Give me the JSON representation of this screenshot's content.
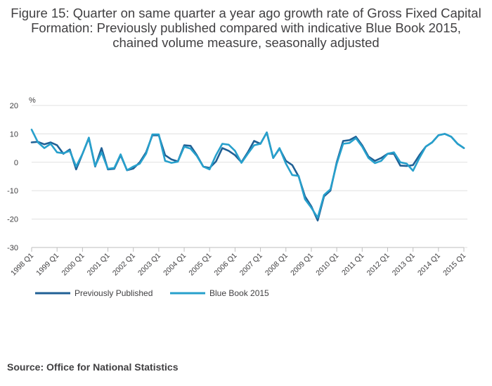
{
  "title": "Figure 15: Quarter on same quarter a year ago growth rate of Gross Fixed Capital Formation: Previously published compared with indicative Blue Book 2015, chained volume measure, seasonally adjusted",
  "source": "Source: Office for National Statistics",
  "colors": {
    "previous": "#206095",
    "bluebook": "#27a0cc",
    "grid": "#e0e0e0",
    "text": "#414042",
    "axis": "#bebebe"
  },
  "chart_data": {
    "type": "line",
    "ylabel": "%",
    "ylim": [
      -30,
      20
    ],
    "yticks": [
      20,
      10,
      0,
      -10,
      -20,
      -30
    ],
    "grid": true,
    "legend_position": "bottom-left",
    "x": [
      "1998 Q1",
      "1998 Q2",
      "1998 Q3",
      "1998 Q4",
      "1999 Q1",
      "1999 Q2",
      "1999 Q3",
      "1999 Q4",
      "2000 Q1",
      "2000 Q2",
      "2000 Q3",
      "2000 Q4",
      "2001 Q1",
      "2001 Q2",
      "2001 Q3",
      "2001 Q4",
      "2002 Q1",
      "2002 Q2",
      "2002 Q3",
      "2002 Q4",
      "2003 Q1",
      "2003 Q2",
      "2003 Q3",
      "2003 Q4",
      "2004 Q1",
      "2004 Q2",
      "2004 Q3",
      "2004 Q4",
      "2005 Q1",
      "2005 Q2",
      "2005 Q3",
      "2005 Q4",
      "2006 Q1",
      "2006 Q2",
      "2006 Q3",
      "2006 Q4",
      "2007 Q1",
      "2007 Q2",
      "2007 Q3",
      "2007 Q4",
      "2008 Q1",
      "2008 Q2",
      "2008 Q3",
      "2008 Q4",
      "2009 Q1",
      "2009 Q2",
      "2009 Q3",
      "2009 Q4",
      "2010 Q1",
      "2010 Q2",
      "2010 Q3",
      "2010 Q4",
      "2011 Q1",
      "2011 Q2",
      "2011 Q3",
      "2011 Q4",
      "2012 Q1",
      "2012 Q2",
      "2012 Q3",
      "2012 Q4",
      "2013 Q1",
      "2013 Q2",
      "2013 Q3",
      "2013 Q4",
      "2014 Q1",
      "2014 Q2",
      "2014 Q3",
      "2014 Q4",
      "2015 Q1"
    ],
    "xtick_labels": [
      "1998 Q1",
      "1999 Q1",
      "2000 Q1",
      "2001 Q1",
      "2002 Q1",
      "2003 Q1",
      "2004 Q1",
      "2005 Q1",
      "2006 Q1",
      "2007 Q1",
      "2008 Q1",
      "2009 Q1",
      "2010 Q1",
      "2011 Q1",
      "2012 Q1",
      "2013 Q1",
      "2014 Q1",
      "2015 Q1"
    ],
    "series": [
      {
        "name": "Previously Published",
        "color": "#206095",
        "values": [
          7.0,
          7.2,
          6.3,
          7.0,
          6.0,
          3.0,
          4.5,
          -2.5,
          3.0,
          8.5,
          -1.5,
          5.0,
          -2.5,
          -2.3,
          2.5,
          -2.8,
          -2.2,
          0.0,
          3.5,
          9.5,
          9.5,
          2.5,
          1.0,
          0.3,
          6.0,
          5.8,
          2.5,
          -1.5,
          -2.0,
          0.3,
          5.0,
          4.0,
          2.5,
          0.0,
          3.5,
          7.5,
          6.5,
          10.5,
          1.5,
          4.8,
          0.5,
          -1.0,
          -5.0,
          -12.0,
          -15.5,
          -20.5,
          -12.0,
          -10.0,
          0.0,
          7.5,
          7.8,
          9.0,
          6.0,
          2.0,
          0.5,
          1.5,
          3.0,
          3.0,
          -1.2,
          -1.3,
          -1.0,
          2.5,
          5.5,
          7.0,
          9.5,
          10.0,
          9.0,
          6.5,
          5.0
        ]
      },
      {
        "name": "Blue Book 2015",
        "color": "#27a0cc",
        "values": [
          11.5,
          7.0,
          5.0,
          6.5,
          3.5,
          3.2,
          4.0,
          -1.5,
          3.0,
          8.7,
          -1.3,
          3.5,
          -2.3,
          -2.0,
          2.8,
          -2.8,
          -1.5,
          -0.5,
          3.0,
          9.8,
          9.8,
          0.5,
          -0.2,
          0.2,
          5.5,
          4.8,
          2.2,
          -1.5,
          -2.5,
          2.5,
          6.5,
          6.2,
          4.0,
          -0.2,
          3.0,
          6.0,
          6.5,
          10.5,
          1.5,
          5.0,
          -0.5,
          -4.5,
          -4.8,
          -13.0,
          -16.0,
          -19.5,
          -11.5,
          -9.5,
          -0.5,
          6.5,
          6.8,
          8.5,
          5.5,
          1.5,
          -0.3,
          0.5,
          3.0,
          3.5,
          0.0,
          -0.5,
          -3.0,
          1.5,
          5.5,
          7.0,
          9.5,
          10.0,
          9.0,
          6.5,
          5.0
        ]
      }
    ]
  }
}
